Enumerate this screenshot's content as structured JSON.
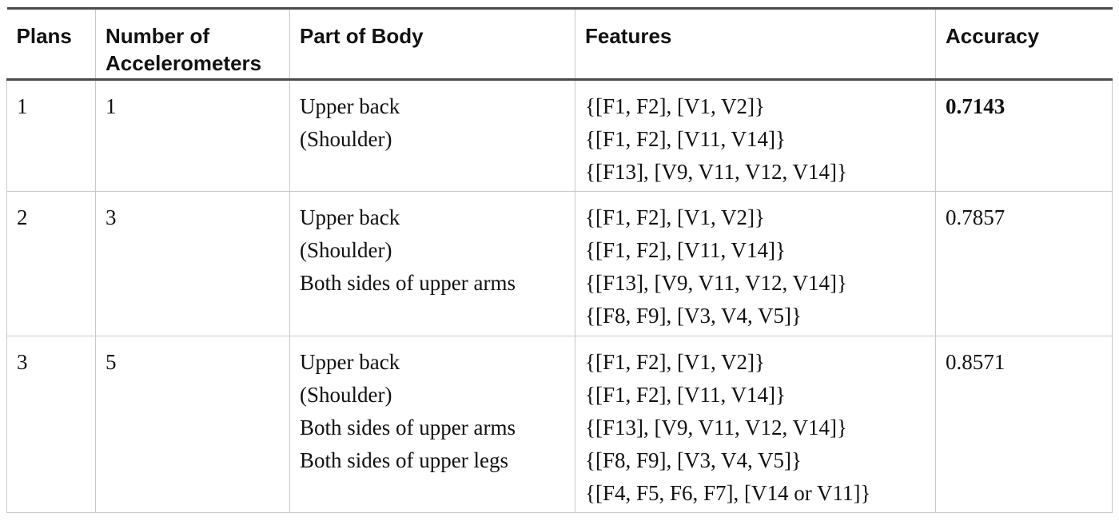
{
  "table": {
    "headers": {
      "plans": "Plans",
      "num_acc_line1": "Number of",
      "num_acc_line2": "Accelerometers",
      "part": "Part of Body",
      "features": "Features",
      "accuracy": "Accuracy"
    },
    "rows": [
      {
        "plan": "1",
        "num": "1",
        "parts": [
          "Upper back",
          "(Shoulder)"
        ],
        "features": [
          "{[F1, F2], [V1, V2]}",
          "{[F1, F2], [V11, V14]}",
          "{[F13], [V9, V11, V12, V14]}"
        ],
        "accuracy": "0.7143"
      },
      {
        "plan": "2",
        "num": "3",
        "parts": [
          "Upper back",
          "(Shoulder)",
          "Both sides of upper arms"
        ],
        "features": [
          "{[F1, F2], [V1, V2]}",
          "{[F1, F2], [V11, V14]}",
          "{[F13], [V9, V11, V12, V14]}",
          "{[F8, F9], [V3, V4, V5]}"
        ],
        "accuracy": "0.7857"
      },
      {
        "plan": "3",
        "num": "5",
        "parts": [
          "Upper back",
          "(Shoulder)",
          "Both sides of upper arms",
          "Both sides of upper legs"
        ],
        "features": [
          "{[F1, F2], [V1, V2]}",
          "{[F1, F2], [V11, V14]}",
          "{[F13], [V9, V11, V12, V14]}",
          "{[F8, F9], [V3, V4, V5]}",
          "{[F4, F5, F6, F7], [V14 or V11]}"
        ],
        "accuracy": "0.8571"
      }
    ]
  }
}
